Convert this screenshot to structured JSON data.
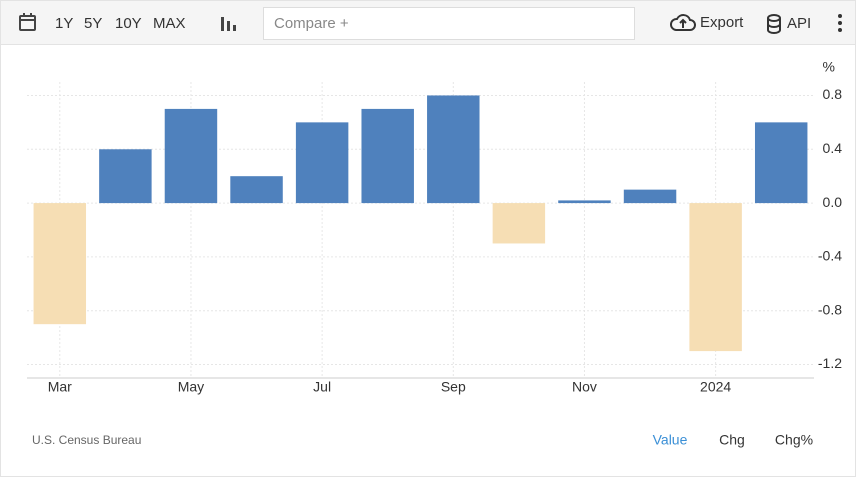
{
  "toolbar": {
    "ranges": [
      "1Y",
      "5Y",
      "10Y",
      "MAX"
    ],
    "compare": "Compare +",
    "export": "Export",
    "api": "API"
  },
  "chart_data": {
    "type": "bar",
    "unit": "%",
    "categories": [
      "Mar",
      null,
      "May",
      null,
      "Jul",
      null,
      "Sep",
      null,
      "Nov",
      null,
      "2024",
      null
    ],
    "values": [
      -0.9,
      0.4,
      0.7,
      0.2,
      0.6,
      0.7,
      0.8,
      -0.3,
      0.02,
      0.1,
      -1.1,
      0.6
    ],
    "color": "#4f81bd",
    "negative_color": "#f6deb4",
    "ylim": [
      -1.3,
      0.9
    ],
    "yticks": [
      {
        "value": -1.2,
        "label": "-1.2"
      },
      -0.8,
      -0.4,
      {
        "value": 0,
        "label": "0.0"
      },
      0.4,
      0.8
    ],
    "grid": true,
    "source": "U.S. Census Bureau"
  },
  "footer_tabs": [
    "Value",
    "Chg",
    "Chg%"
  ]
}
